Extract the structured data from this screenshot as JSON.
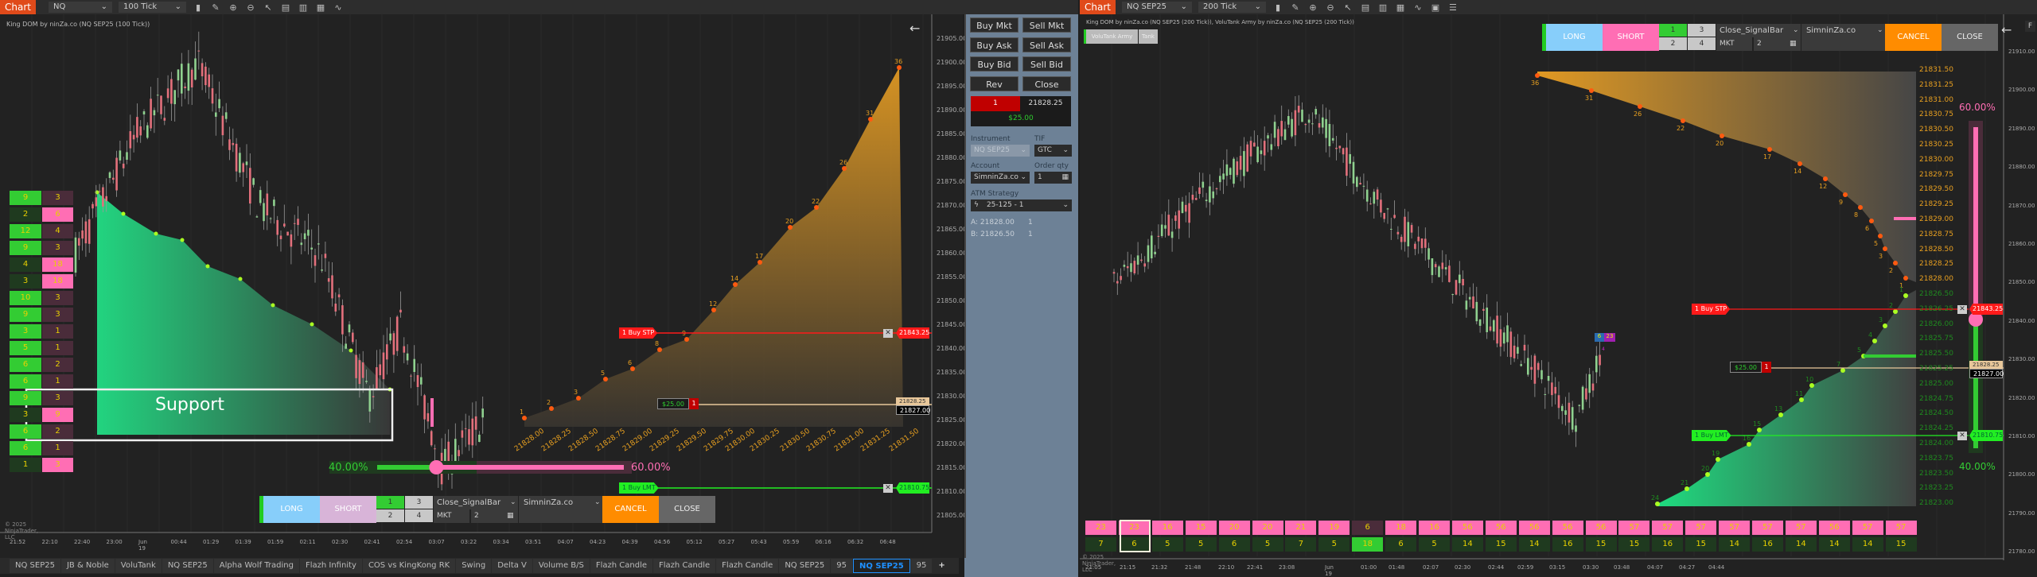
{
  "left": {
    "toolbar": {
      "tab": "Chart",
      "instrument": "NQ SEP25",
      "interval": "100 Tick"
    },
    "title": "King DOM by ninZa.co (NQ SEP25 (100 Tick))",
    "dom": {
      "bids": [
        "9",
        "2",
        "12",
        "9",
        "4",
        "3",
        "10",
        "9",
        "3",
        "5",
        "6",
        "6",
        "9",
        "3",
        "6",
        "6",
        "1"
      ],
      "bid_highlight": [
        1,
        0,
        1,
        1,
        0,
        0,
        1,
        1,
        1,
        1,
        1,
        1,
        1,
        0,
        1,
        1,
        0
      ],
      "asks": [
        "3",
        "6",
        "4",
        "3",
        "18",
        "18",
        "3",
        "3",
        "1",
        "1",
        "2",
        "1",
        "3",
        "9",
        "2",
        "1",
        "3"
      ],
      "ask_highlight": [
        0,
        1,
        0,
        0,
        1,
        1,
        0,
        0,
        0,
        0,
        0,
        0,
        0,
        1,
        0,
        0,
        1
      ]
    },
    "support_label": "Support",
    "price_axis": [
      "21905.00",
      "21900.00",
      "21895.00",
      "21890.00",
      "21885.00",
      "21880.00",
      "21875.00",
      "21870.00",
      "21865.00",
      "21860.00",
      "21855.00",
      "21850.00",
      "21845.00",
      "21840.00",
      "21835.00",
      "21830.00",
      "21825.00",
      "21820.00",
      "21815.00",
      "21810.00",
      "21805.00"
    ],
    "time_axis": [
      "21:52",
      "22:10",
      "22:40",
      "23:00",
      "Jun 19",
      "00:44",
      "01:29",
      "01:39",
      "01:59",
      "02:11",
      "02:30",
      "02:41",
      "02:54",
      "03:07",
      "03:22",
      "03:34",
      "03:51",
      "04:07",
      "04:23",
      "04:39",
      "04:56",
      "05:12",
      "05:27",
      "05:43",
      "05:59",
      "06:16",
      "06:32",
      "06:48"
    ],
    "ladder_labels": [
      "21828.00",
      "21828.25",
      "21828.50",
      "21828.75",
      "21829.00",
      "21829.25",
      "21829.50",
      "21829.75",
      "21830.00",
      "21830.25",
      "21830.50",
      "21830.75",
      "21831.00",
      "21831.25",
      "21831.50"
    ],
    "profile_counts": [
      "1",
      "2",
      "3",
      "5",
      "6",
      "8",
      "9",
      "12",
      "14",
      "17",
      "20",
      "22",
      "26",
      "31",
      "36"
    ],
    "tags": {
      "buy_stp": "1  Buy STP",
      "stp_price": "21843.25",
      "pnl": "$25.00",
      "pos_qty": "1",
      "avg_price": "21828.25",
      "last_price": "21827.00",
      "buy_lmt": "1  Buy LMT",
      "lmt_price": "21810.75",
      "close_x": "✕"
    },
    "ratio": {
      "buy": "40.00%",
      "sell": "60.00%",
      "buy_fraction": 0.4
    },
    "panel": {
      "long": "LONG",
      "short": "SHORT",
      "q1": "1",
      "q2": "2",
      "q3": "3",
      "q4": "4",
      "mode": "Close_SignalBar",
      "type": "MKT",
      "qty": "2",
      "account": "SimninZa.co",
      "cancel": "CANCEL",
      "close": "CLOSE"
    },
    "copyright": "© 2025 NinjaTrader, LLC",
    "tabs": [
      "NQ SEP25",
      "JB & Noble",
      "VoluTank",
      "NQ SEP25",
      "Alpha Wolf Trading",
      "Flazh Infinity",
      "COS vs KingKong RK",
      "Swing",
      "Delta V",
      "Volume B/S",
      "Flazh Candle",
      "Flazh Candle",
      "Flazh Candle",
      "NQ SEP25",
      "95",
      "NQ SEP25",
      "95",
      "+"
    ],
    "active_tab": 15
  },
  "order_panel": {
    "buy_mkt": "Buy Mkt",
    "sell_mkt": "Sell Mkt",
    "buy_ask": "Buy Ask",
    "sell_ask": "Sell Ask",
    "buy_bid": "Buy Bid",
    "sell_bid": "Sell Bid",
    "rev": "Rev",
    "close": "Close",
    "position_qty": "1",
    "position_price": "21828.25",
    "pnl": "$25.00",
    "instrument_label": "Instrument",
    "instrument": "NQ SEP25",
    "tif_label": "TIF",
    "tif": "GTC",
    "account_label": "Account",
    "account": "SimninZa.co",
    "qty_label": "Order qty",
    "qty": "1",
    "atm_label": "ATM Strategy",
    "atm": "25-125 - 1",
    "target_a": "A:  21828.00",
    "target_a_qty": "1",
    "target_b": "B:  21826.50",
    "target_b_qty": "1"
  },
  "right": {
    "toolbar": {
      "tab": "Chart",
      "instrument": "NQ SEP25",
      "interval": "200 Tick"
    },
    "title": "King DOM by ninZa.co (NQ SEP25 (200 Tick)), VoluTank Army by ninZa.co (NQ SEP25 (200 Tick))",
    "volutank_btn": "VoluTank Army",
    "tank_btn": "Tank",
    "panel": {
      "long": "LONG",
      "short": "SHORT",
      "q1": "1",
      "q2": "2",
      "q3": "3",
      "q4": "4",
      "mode": "Close_SignalBar",
      "type": "MKT",
      "qty": "2",
      "account": "SimninZa.co",
      "cancel": "CANCEL",
      "close": "CLOSE"
    },
    "f_btn": "F",
    "price_axis": [
      "21910.00",
      "21900.00",
      "21890.00",
      "21880.00",
      "21870.00",
      "21860.00",
      "21850.00",
      "21840.00",
      "21830.00",
      "21820.00",
      "21810.00",
      "21800.00",
      "21790.00",
      "21780.00"
    ],
    "ladder_sell": [
      "21831.50",
      "21831.25",
      "21831.00",
      "21830.75",
      "21830.50",
      "21830.25",
      "21830.00",
      "21829.75",
      "21829.50",
      "21829.25",
      "21829.00",
      "21828.75",
      "21828.50",
      "21828.25",
      "21828.00"
    ],
    "ladder_buy": [
      "21826.50",
      "21826.25",
      "21826.00",
      "21825.75",
      "21825.50",
      "21825.25",
      "21825.00",
      "21824.75",
      "21824.50",
      "21824.25",
      "21824.00",
      "21823.75",
      "21823.50",
      "21823.25",
      "21823.00"
    ],
    "sell_counts": [
      "36",
      "31",
      "26",
      "22",
      "20",
      "17",
      "14",
      "12",
      "9",
      "8",
      "6",
      "5",
      "3",
      "2",
      "1"
    ],
    "buy_counts": [
      "1",
      "2",
      "3",
      "4",
      "5",
      "7",
      "10",
      "11",
      "13",
      "15",
      "16",
      "19",
      "20",
      "21",
      "24"
    ],
    "ratio": {
      "sell": "60.00%",
      "buy": "40.00%",
      "buy_fraction": 0.4
    },
    "tags": {
      "buy_stp": "1  Buy STP",
      "stp_price": "21843.25",
      "pnl": "$25.00",
      "pos_qty": "1",
      "avg_price": "21828.25",
      "last_price": "21827.00",
      "buy_lmt": "1  Buy LMT",
      "lmt_price": "21810.75",
      "close_x": "✕",
      "signal_a": "6",
      "signal_b": "23",
      "signal_c": "4"
    },
    "volume_sell": [
      "23",
      "23",
      "16",
      "15",
      "20",
      "20",
      "21",
      "19",
      "6",
      "18",
      "16",
      "56",
      "56",
      "56",
      "56",
      "56",
      "57",
      "57",
      "57",
      "57",
      "57",
      "57",
      "56",
      "57",
      "57"
    ],
    "volume_buy": [
      "7",
      "6",
      "5",
      "5",
      "6",
      "5",
      "7",
      "5",
      "18",
      "6",
      "5",
      "14",
      "15",
      "14",
      "16",
      "15",
      "15",
      "16",
      "15",
      "14",
      "16",
      "14",
      "14",
      "14",
      "15"
    ],
    "time_axis": [
      "21:05",
      "21:15",
      "21:32",
      "21:48",
      "22:10",
      "22:41",
      "23:08",
      "Jun 19",
      "01:00",
      "01:48",
      "02:07",
      "02:30",
      "02:44",
      "02:59",
      "03:15",
      "03:30",
      "03:48",
      "04:07",
      "04:27",
      "04:44"
    ],
    "copyright": "© 2025 NinjaTrader, LLC"
  },
  "colors": {
    "bid": "#33cc33",
    "bid_dim": "#1f3a1f",
    "ask": "#ff6eb4",
    "ask_dim": "#4a2c3a",
    "long": "#87cefa",
    "short_left": "#d8b4d8",
    "short_right": "#ff6eb4",
    "cancel": "#ff8c00",
    "close": "#666666",
    "stop": "#ff1a1a",
    "limit": "#22ee22",
    "panel": "#6d8196"
  }
}
